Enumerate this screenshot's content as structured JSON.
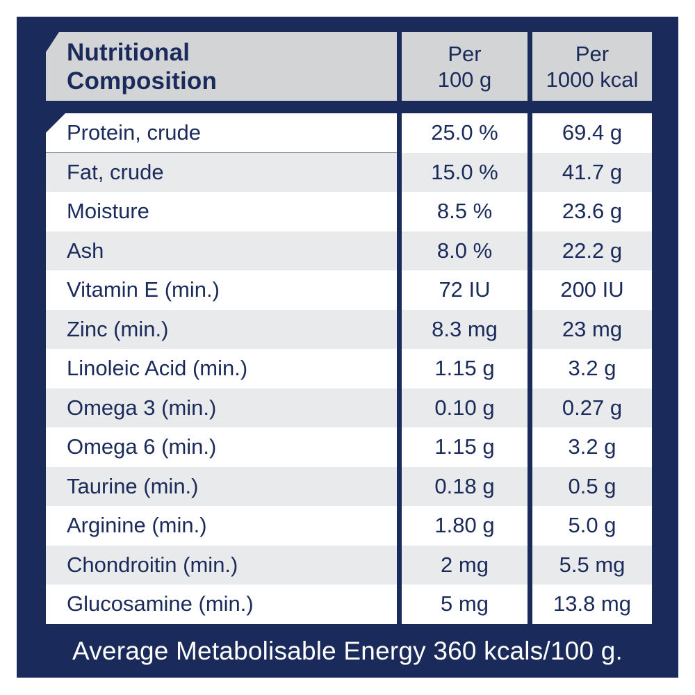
{
  "colors": {
    "navy_background": "#1a2a5a",
    "header_gray": "#d3d4d6",
    "row_alt_gray": "#e9eaec",
    "row_white": "#ffffff",
    "text_navy": "#1a2a5a",
    "footer_text_white": "#ffffff"
  },
  "table": {
    "title": "Nutritional\nComposition",
    "columns": [
      "Per\n100 g",
      "Per\n1000 kcal"
    ],
    "rows": [
      {
        "label": "Protein, crude",
        "per_100_g": "25.0 %",
        "per_1000_kcal": "69.4 g"
      },
      {
        "label": "Fat, crude",
        "per_100_g": "15.0 %",
        "per_1000_kcal": "41.7 g"
      },
      {
        "label": "Moisture",
        "per_100_g": "8.5 %",
        "per_1000_kcal": "23.6 g"
      },
      {
        "label": "Ash",
        "per_100_g": "8.0 %",
        "per_1000_kcal": "22.2 g"
      },
      {
        "label": "Vitamin E (min.)",
        "per_100_g": "72 IU",
        "per_1000_kcal": "200 IU"
      },
      {
        "label": "Zinc (min.)",
        "per_100_g": "8.3 mg",
        "per_1000_kcal": "23 mg"
      },
      {
        "label": "Linoleic Acid (min.)",
        "per_100_g": "1.15 g",
        "per_1000_kcal": "3.2 g"
      },
      {
        "label": "Omega 3 (min.)",
        "per_100_g": "0.10 g",
        "per_1000_kcal": "0.27 g"
      },
      {
        "label": "Omega 6 (min.)",
        "per_100_g": "1.15 g",
        "per_1000_kcal": "3.2 g"
      },
      {
        "label": "Taurine (min.)",
        "per_100_g": "0.18 g",
        "per_1000_kcal": "0.5 g"
      },
      {
        "label": "Arginine (min.)",
        "per_100_g": "1.80 g",
        "per_1000_kcal": "5.0 g"
      },
      {
        "label": "Chondroitin (min.)",
        "per_100_g": "2 mg",
        "per_1000_kcal": "5.5 mg"
      },
      {
        "label": "Glucosamine (min.)",
        "per_100_g": "5 mg",
        "per_1000_kcal": "13.8 mg"
      }
    ],
    "footer": "Average Metabolisable Energy 360 kcals/100 g."
  }
}
